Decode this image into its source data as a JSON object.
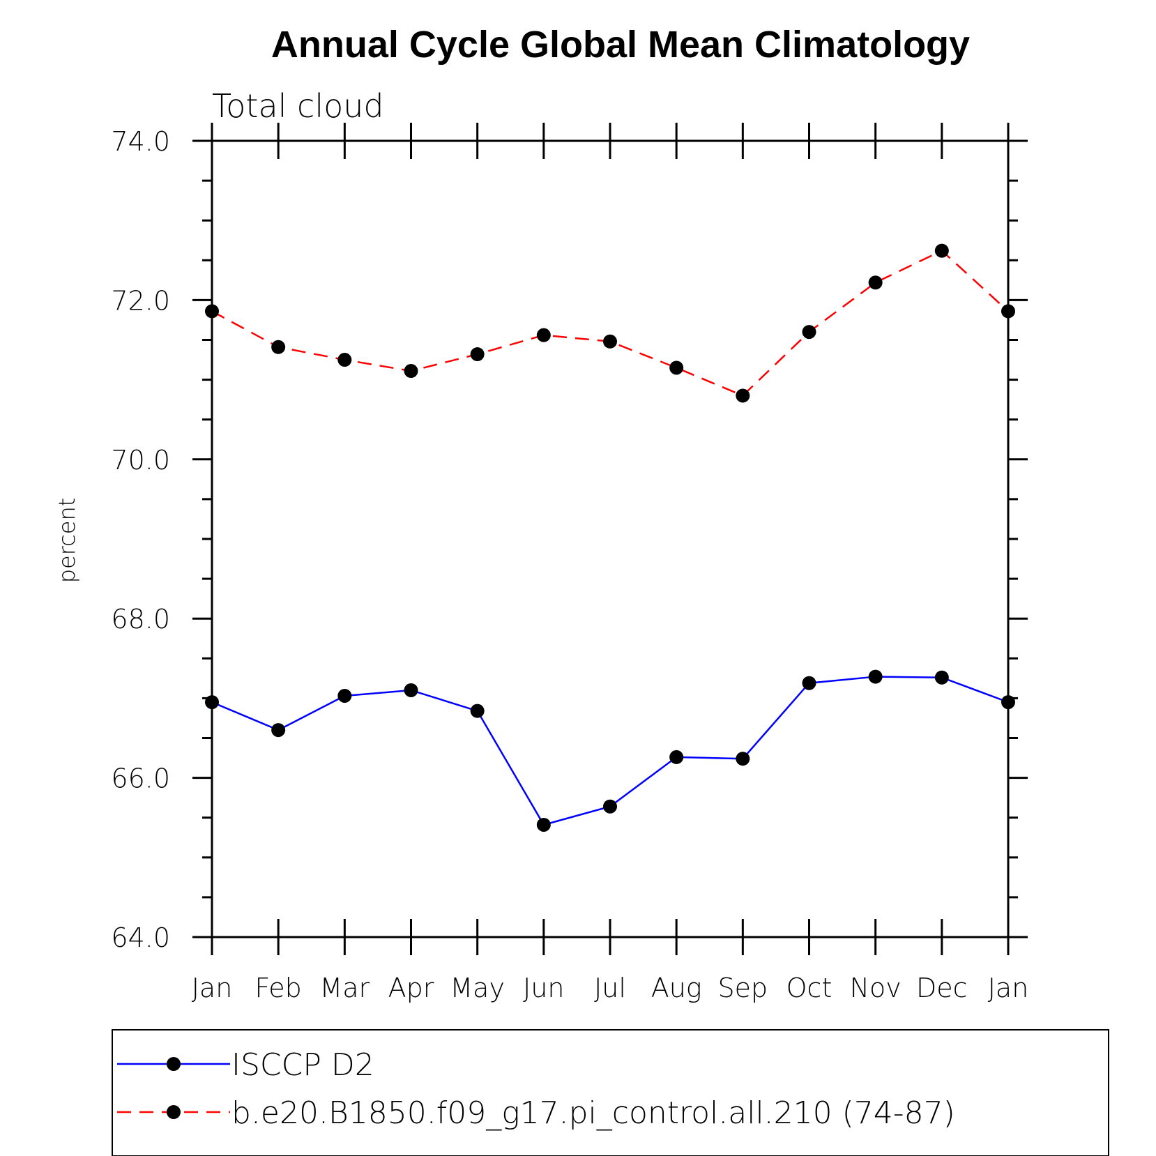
{
  "chart_data": {
    "type": "line",
    "title": "Annual Cycle Global Mean Climatology",
    "subtitle": "Total cloud",
    "xlabel": "",
    "ylabel": "percent",
    "categories": [
      "Jan",
      "Feb",
      "Mar",
      "Apr",
      "May",
      "Jun",
      "Jul",
      "Aug",
      "Sep",
      "Oct",
      "Nov",
      "Dec",
      "Jan"
    ],
    "ylim": [
      64.0,
      74.0
    ],
    "yticks": [
      "64.0",
      "66.0",
      "68.0",
      "70.0",
      "72.0",
      "74.0"
    ],
    "grid": false,
    "legend": "bottom",
    "series": [
      {
        "name": "ISCCP D2",
        "color": "#0000ff",
        "dash": "solid",
        "values": [
          66.95,
          66.6,
          67.03,
          67.1,
          66.84,
          65.41,
          65.64,
          66.26,
          66.24,
          67.19,
          67.27,
          67.26,
          66.95
        ]
      },
      {
        "name": "b.e20.B1850.f09_g17.pi_control.all.210 (74-87)",
        "color": "#ff0000",
        "dash": "dashed",
        "values": [
          71.86,
          71.41,
          71.25,
          71.11,
          71.32,
          71.56,
          71.48,
          71.15,
          70.8,
          71.6,
          72.22,
          72.62,
          71.86
        ]
      }
    ]
  }
}
